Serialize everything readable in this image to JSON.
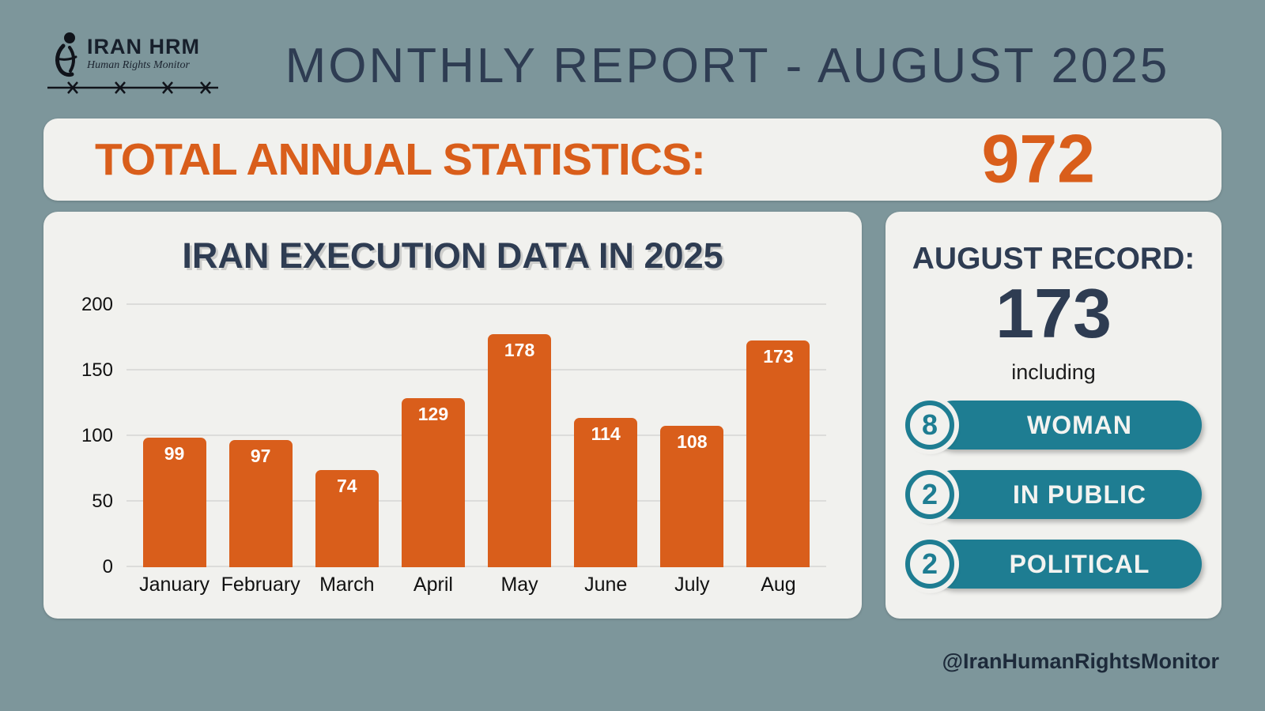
{
  "header": {
    "logo_title": "IRAN HRM",
    "logo_subtitle": "Human Rights Monitor",
    "title": "MONTHLY REPORT - AUGUST 2025"
  },
  "total": {
    "label": "TOTAL ANNUAL STATISTICS:",
    "value": "972"
  },
  "chart_data": {
    "type": "bar",
    "title": "IRAN EXECUTION DATA IN 2025",
    "categories": [
      "January",
      "February",
      "March",
      "April",
      "May",
      "June",
      "July",
      "Aug"
    ],
    "values": [
      99,
      97,
      74,
      129,
      178,
      114,
      108,
      173
    ],
    "xlabel": "",
    "ylabel": "",
    "ylim": [
      0,
      200
    ],
    "yticks": [
      0,
      50,
      100,
      150,
      200
    ],
    "grid": true,
    "legend": "none",
    "bar_color": "#d95e1b",
    "value_label_style": "white-inside-top"
  },
  "august_record": {
    "heading": "AUGUST RECORD:",
    "value": "173",
    "including_label": "including",
    "badges": [
      {
        "count": "8",
        "label": "WOMAN"
      },
      {
        "count": "2",
        "label": "IN PUBLIC"
      },
      {
        "count": "2",
        "label": "POLITICAL"
      }
    ]
  },
  "footer": {
    "handle": "@IranHumanRightsMonitor"
  },
  "colors": {
    "background": "#7d969b",
    "card": "#f1f1ee",
    "accent_orange": "#d95e1b",
    "navy": "#2e3c52",
    "teal": "#1e7d92"
  }
}
